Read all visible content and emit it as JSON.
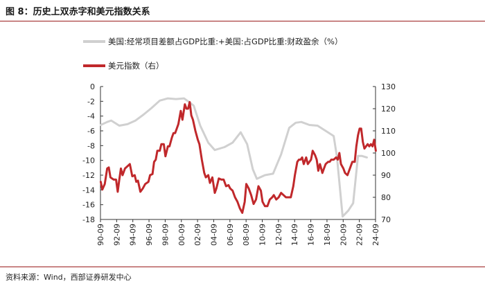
{
  "page": {
    "title": "图 8：历史上双赤字和美元指数关系",
    "source": "资料来源：Wind，西部证券研发中心"
  },
  "colors": {
    "series_grey": "#d0d0d0",
    "series_red": "#c0282b",
    "rule": "#9a1c1c",
    "axis": "#333333"
  },
  "chart_data": {
    "type": "line",
    "title": "图 8：历史上双赤字和美元指数关系",
    "x_ticks": [
      "90-09",
      "92-09",
      "94-09",
      "96-09",
      "98-09",
      "00-09",
      "02-09",
      "04-09",
      "06-09",
      "08-09",
      "10-09",
      "12-09",
      "14-09",
      "16-09",
      "18-09",
      "20-09",
      "22-09",
      "24-09"
    ],
    "xlim": [
      1990.67,
      2024.67
    ],
    "y_left": {
      "lim": [
        -18,
        0
      ],
      "ticks": [
        0,
        -2,
        -4,
        -6,
        -8,
        -10,
        -12,
        -14,
        -16,
        -18
      ]
    },
    "y_right": {
      "lim": [
        70,
        130
      ],
      "ticks": [
        130,
        120,
        110,
        100,
        90,
        80,
        70
      ]
    },
    "legend_position": "top-left",
    "series": [
      {
        "name": "美国:经常项目差额占GDP比重:+美国:占GDP比重:财政盈余（%）",
        "axis": "left",
        "points": [
          [
            1990.7,
            -5.2
          ],
          [
            1991.5,
            -4.8
          ],
          [
            1992.0,
            -4.6
          ],
          [
            1993.0,
            -5.3
          ],
          [
            1994.0,
            -5.1
          ],
          [
            1995.0,
            -4.6
          ],
          [
            1996.0,
            -3.8
          ],
          [
            1997.0,
            -2.9
          ],
          [
            1998.0,
            -1.9
          ],
          [
            1999.0,
            -1.6
          ],
          [
            2000.0,
            -1.7
          ],
          [
            2001.0,
            -1.6
          ],
          [
            2001.5,
            -2.0
          ],
          [
            2002.2,
            -2.6
          ],
          [
            2003.0,
            -5.3
          ],
          [
            2004.0,
            -7.6
          ],
          [
            2004.8,
            -8.6
          ],
          [
            2006.0,
            -8.2
          ],
          [
            2007.0,
            -7.6
          ],
          [
            2008.0,
            -6.2
          ],
          [
            2008.8,
            -7.8
          ],
          [
            2009.5,
            -11.2
          ],
          [
            2010.0,
            -12.5
          ],
          [
            2011.0,
            -12.0
          ],
          [
            2012.0,
            -11.8
          ],
          [
            2013.0,
            -9.2
          ],
          [
            2014.0,
            -5.6
          ],
          [
            2014.8,
            -4.9
          ],
          [
            2015.5,
            -4.8
          ],
          [
            2016.5,
            -5.2
          ],
          [
            2017.5,
            -5.3
          ],
          [
            2018.5,
            -6.0
          ],
          [
            2019.5,
            -6.7
          ],
          [
            2019.9,
            -9.5
          ],
          [
            2020.6,
            -17.6
          ],
          [
            2021.3,
            -16.8
          ],
          [
            2021.9,
            -15.8
          ],
          [
            2022.5,
            -9.4
          ],
          [
            2023.0,
            -9.4
          ],
          [
            2023.6,
            -9.6
          ]
        ]
      },
      {
        "name": "美元指数（右）",
        "axis": "right",
        "points": [
          [
            1990.7,
            87
          ],
          [
            1990.9,
            83.5
          ],
          [
            1991.2,
            86
          ],
          [
            1991.5,
            93
          ],
          [
            1991.7,
            93.5
          ],
          [
            1991.9,
            89
          ],
          [
            1992.3,
            88
          ],
          [
            1992.6,
            88
          ],
          [
            1992.8,
            82.5
          ],
          [
            1993.0,
            88
          ],
          [
            1993.2,
            93
          ],
          [
            1993.4,
            90
          ],
          [
            1993.7,
            93
          ],
          [
            1994.0,
            94
          ],
          [
            1994.3,
            95
          ],
          [
            1994.6,
            89.5
          ],
          [
            1994.9,
            90
          ],
          [
            1995.1,
            87
          ],
          [
            1995.3,
            87.5
          ],
          [
            1995.6,
            82.5
          ],
          [
            1995.9,
            84
          ],
          [
            1996.2,
            86
          ],
          [
            1996.6,
            87
          ],
          [
            1996.8,
            90
          ],
          [
            1997.1,
            90.5
          ],
          [
            1997.3,
            96
          ],
          [
            1997.5,
            97
          ],
          [
            1997.7,
            101
          ],
          [
            1998.0,
            101
          ],
          [
            1998.2,
            104
          ],
          [
            1998.5,
            104
          ],
          [
            1998.7,
            98.5
          ],
          [
            1999.0,
            103
          ],
          [
            1999.2,
            103
          ],
          [
            1999.5,
            107
          ],
          [
            1999.7,
            109
          ],
          [
            1999.9,
            109
          ],
          [
            2000.3,
            113
          ],
          [
            2000.6,
            119
          ],
          [
            2000.8,
            115
          ],
          [
            2001.1,
            122
          ],
          [
            2001.3,
            120
          ],
          [
            2001.5,
            120
          ],
          [
            2001.7,
            123
          ],
          [
            2001.9,
            117
          ],
          [
            2002.1,
            115
          ],
          [
            2002.4,
            110
          ],
          [
            2002.7,
            106
          ],
          [
            2002.9,
            104
          ],
          [
            2003.2,
            97
          ],
          [
            2003.5,
            91
          ],
          [
            2003.7,
            89
          ],
          [
            2004.0,
            90
          ],
          [
            2004.2,
            86.5
          ],
          [
            2004.5,
            89
          ],
          [
            2004.8,
            82
          ],
          [
            2005.0,
            84
          ],
          [
            2005.3,
            88.5
          ],
          [
            2005.6,
            88
          ],
          [
            2005.9,
            88
          ],
          [
            2006.2,
            85
          ],
          [
            2006.5,
            85.5
          ],
          [
            2006.7,
            84
          ],
          [
            2007.0,
            83
          ],
          [
            2007.3,
            80
          ],
          [
            2007.6,
            78
          ],
          [
            2007.9,
            75
          ],
          [
            2008.2,
            73
          ],
          [
            2008.5,
            78
          ],
          [
            2008.7,
            86
          ],
          [
            2009.0,
            84
          ],
          [
            2009.3,
            81
          ],
          [
            2009.6,
            77
          ],
          [
            2009.9,
            79
          ],
          [
            2010.2,
            85
          ],
          [
            2010.5,
            83
          ],
          [
            2010.7,
            78
          ],
          [
            2011.0,
            76
          ],
          [
            2011.3,
            76
          ],
          [
            2011.6,
            79
          ],
          [
            2011.9,
            80
          ],
          [
            2012.1,
            81
          ],
          [
            2012.4,
            79
          ],
          [
            2012.7,
            80
          ],
          [
            2013.0,
            82
          ],
          [
            2013.3,
            81
          ],
          [
            2013.6,
            80
          ],
          [
            2013.9,
            80
          ],
          [
            2014.2,
            80
          ],
          [
            2014.5,
            85
          ],
          [
            2014.7,
            90
          ],
          [
            2015.0,
            96
          ],
          [
            2015.2,
            97
          ],
          [
            2015.4,
            97
          ],
          [
            2015.6,
            98
          ],
          [
            2015.8,
            95
          ],
          [
            2016.1,
            98
          ],
          [
            2016.3,
            95
          ],
          [
            2016.5,
            96
          ],
          [
            2016.7,
            97
          ],
          [
            2016.9,
            101
          ],
          [
            2017.2,
            99
          ],
          [
            2017.4,
            97
          ],
          [
            2017.6,
            92
          ],
          [
            2017.8,
            95
          ],
          [
            2018.1,
            91
          ],
          [
            2018.3,
            93
          ],
          [
            2018.5,
            95
          ],
          [
            2018.8,
            96
          ],
          [
            2019.0,
            96
          ],
          [
            2019.2,
            97
          ],
          [
            2019.5,
            97
          ],
          [
            2019.8,
            98
          ],
          [
            2020.0,
            97
          ],
          [
            2020.2,
            100
          ],
          [
            2020.4,
            95
          ],
          [
            2020.7,
            93
          ],
          [
            2020.9,
            91
          ],
          [
            2021.2,
            90
          ],
          [
            2021.5,
            93
          ],
          [
            2021.8,
            96
          ],
          [
            2022.1,
            96
          ],
          [
            2022.3,
            103
          ],
          [
            2022.5,
            108
          ],
          [
            2022.7,
            111
          ],
          [
            2022.9,
            111
          ],
          [
            2023.1,
            105
          ],
          [
            2023.3,
            102
          ],
          [
            2023.5,
            103
          ],
          [
            2023.7,
            104
          ],
          [
            2023.9,
            103
          ],
          [
            2024.1,
            104
          ],
          [
            2024.3,
            103
          ],
          [
            2024.5,
            106
          ],
          [
            2024.7,
            101
          ]
        ]
      }
    ]
  }
}
